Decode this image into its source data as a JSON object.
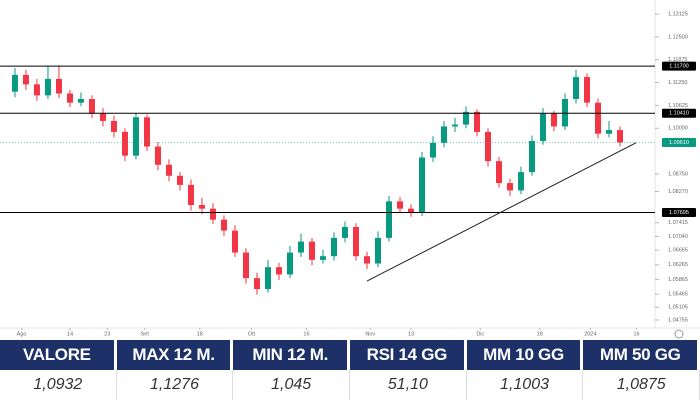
{
  "chart_data": {
    "type": "candlestick",
    "open": [
      1.11,
      1.1146,
      1.112,
      1.109,
      1.1135,
      1.1095,
      1.107,
      1.108,
      1.104,
      1.102,
      1.099,
      1.0925,
      1.103,
      1.095,
      1.09,
      1.087,
      1.0845,
      1.079,
      1.078,
      1.075,
      1.072,
      1.066,
      1.059,
      1.056,
      1.062,
      1.06,
      1.066,
      1.069,
      1.064,
      1.065,
      1.07,
      1.073,
      1.065,
      1.063,
      1.07,
      1.08,
      1.078,
      1.077,
      1.092,
      1.096,
      1.1005,
      1.101,
      1.1045,
      1.099,
      1.091,
      1.085,
      1.083,
      1.088,
      1.0965,
      1.104,
      1.1005,
      1.108,
      1.114,
      1.107,
      1.0985,
      1.0995
    ],
    "high": [
      1.1165,
      1.116,
      1.1135,
      1.117,
      1.1172,
      1.1105,
      1.1098,
      1.109,
      1.1055,
      1.1035,
      1.1,
      1.1041,
      1.1038,
      1.0962,
      1.0915,
      1.088,
      1.086,
      1.081,
      1.0795,
      1.0762,
      1.0735,
      1.0672,
      1.0605,
      1.064,
      1.0632,
      1.0678,
      1.0712,
      1.07,
      1.0668,
      1.0715,
      1.0745,
      1.074,
      1.0662,
      1.0718,
      1.0815,
      1.0812,
      1.0792,
      1.0935,
      1.0978,
      1.102,
      1.1028,
      1.106,
      1.1052,
      1.1,
      1.0922,
      1.0862,
      1.0895,
      1.098,
      1.1055,
      1.1048,
      1.1095,
      1.116,
      1.115,
      1.1082,
      1.102,
      1.1005
    ],
    "low": [
      1.1085,
      1.1105,
      1.1075,
      1.108,
      1.1082,
      1.1058,
      1.106,
      1.1028,
      1.1005,
      1.0975,
      1.091,
      1.0915,
      1.0938,
      1.0885,
      1.0855,
      1.083,
      1.0775,
      1.0765,
      1.0738,
      1.0705,
      1.0648,
      1.0575,
      1.0545,
      1.055,
      1.0585,
      1.059,
      1.0648,
      1.0625,
      1.063,
      1.0638,
      1.0688,
      1.0638,
      1.0615,
      1.062,
      1.069,
      1.0768,
      1.0758,
      1.076,
      1.0908,
      1.0948,
      1.099,
      1.1,
      1.0978,
      1.0895,
      1.0838,
      1.0815,
      1.082,
      1.087,
      1.0955,
      1.0992,
      1.0995,
      1.1068,
      1.1058,
      1.0972,
      1.0975,
      1.095
    ],
    "close": [
      1.1146,
      1.112,
      1.109,
      1.1135,
      1.1095,
      1.107,
      1.108,
      1.104,
      1.102,
      1.099,
      1.0925,
      1.103,
      1.095,
      1.09,
      1.087,
      1.0845,
      1.079,
      1.078,
      1.075,
      1.072,
      1.066,
      1.059,
      1.056,
      1.062,
      1.06,
      1.066,
      1.069,
      1.064,
      1.065,
      1.07,
      1.073,
      1.065,
      1.063,
      1.07,
      1.08,
      1.078,
      1.077,
      1.092,
      1.096,
      1.1005,
      1.101,
      1.1045,
      1.099,
      1.091,
      1.085,
      1.083,
      1.088,
      1.0965,
      1.104,
      1.1005,
      1.108,
      1.114,
      1.107,
      1.0985,
      1.0995,
      1.0961
    ],
    "up_color": "#089981",
    "down_color": "#f23645",
    "xlim": [
      -1.36,
      58.18
    ],
    "ylim": [
      1.04755,
      1.13125
    ],
    "xticks": [
      {
        "value": 0.6,
        "label": "Ago"
      },
      {
        "value": 5,
        "label": "14"
      },
      {
        "value": 8.4,
        "label": "23"
      },
      {
        "value": 11.8,
        "label": "Set"
      },
      {
        "value": 16.8,
        "label": "18"
      },
      {
        "value": 21.5,
        "label": "Ott"
      },
      {
        "value": 26.5,
        "label": "16"
      },
      {
        "value": 32.3,
        "label": "Nov"
      },
      {
        "value": 36,
        "label": "13"
      },
      {
        "value": 42.3,
        "label": "Dic"
      },
      {
        "value": 47.7,
        "label": "18"
      },
      {
        "value": 52.3,
        "label": "2024"
      },
      {
        "value": 56.5,
        "label": "16"
      }
    ],
    "yticks": [
      {
        "value": 1.13125,
        "label": "1.13125"
      },
      {
        "value": 1.125,
        "label": "1.12500"
      },
      {
        "value": 1.11875,
        "label": "1.11875"
      },
      {
        "value": 1.1125,
        "label": "1.11250"
      },
      {
        "value": 1.10625,
        "label": "1.10625"
      },
      {
        "value": 1.1,
        "label": "1.10000"
      },
      {
        "value": 1.0875,
        "label": "1.08750"
      },
      {
        "value": 1.0827,
        "label": "1.08270"
      },
      {
        "value": 1.07415,
        "label": "1.07415"
      },
      {
        "value": 1.0704,
        "label": "1.07040"
      },
      {
        "value": 1.06665,
        "label": "1.06665"
      },
      {
        "value": 1.06265,
        "label": "1.06265"
      },
      {
        "value": 1.05865,
        "label": "1.05865"
      },
      {
        "value": 1.05465,
        "label": "1.05465"
      },
      {
        "value": 1.05105,
        "label": "1.05105"
      },
      {
        "value": 1.04755,
        "label": "1.04755"
      }
    ],
    "levels": [
      {
        "value": 1.117,
        "label": "1.11700",
        "color": "#000000"
      },
      {
        "value": 1.1041,
        "label": "1.10410",
        "color": "#000000"
      },
      {
        "value": 1.0961,
        "label": "1.09610",
        "color": "#089981"
      },
      {
        "value": 1.07695,
        "label": "1.07695",
        "color": "#000000"
      }
    ],
    "trendline": {
      "x": [
        32,
        56.45
      ],
      "y": [
        1.0582,
        1.096
      ]
    }
  },
  "table": {
    "headers": [
      "VALORE",
      "MAX 12 M.",
      "MIN 12 M.",
      "RSI 14 GG",
      "MM 10 GG",
      "MM 50 GG"
    ],
    "values": [
      "1,0932",
      "1,1276",
      "1,045",
      "51,10",
      "1,1003",
      "1,0875"
    ]
  }
}
